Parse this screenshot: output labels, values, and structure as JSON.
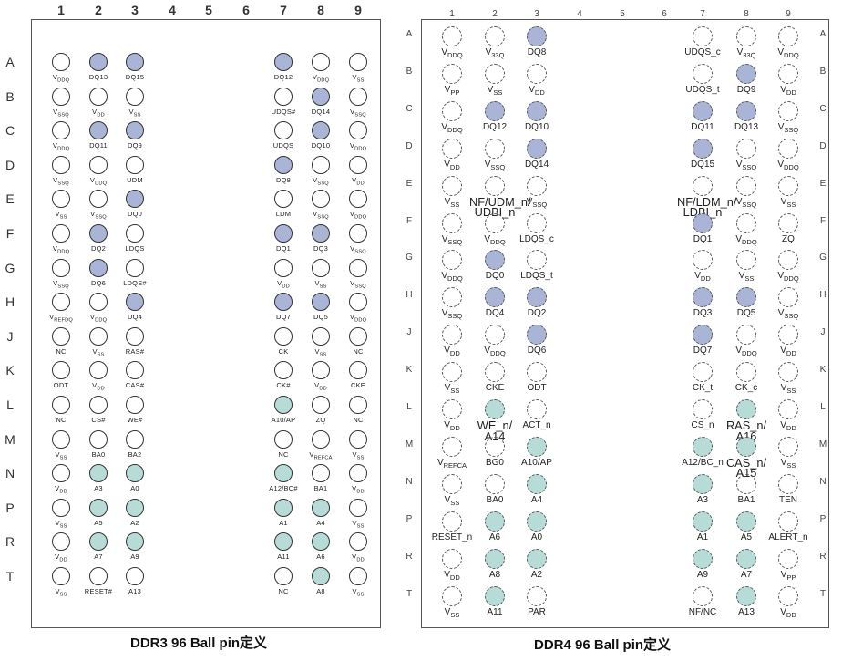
{
  "ddr3": {
    "title": "DDR3 96 Ball pin定义",
    "columns": [
      "1",
      "2",
      "3",
      "4",
      "5",
      "6",
      "7",
      "8",
      "9"
    ],
    "rows": [
      "A",
      "B",
      "C",
      "D",
      "E",
      "F",
      "G",
      "H",
      "J",
      "K",
      "L",
      "M",
      "N",
      "P",
      "R",
      "T"
    ],
    "pins": [
      [
        "VDDQ:w",
        "DQ13:b",
        "DQ15:b",
        null,
        null,
        null,
        "DQ12:b",
        "VDDQ:w",
        "VSS:w"
      ],
      [
        "VSSQ:w",
        "VDD:w",
        "VSS:w",
        null,
        null,
        null,
        "UDQS#:w",
        "DQ14:b",
        "VSSQ:w"
      ],
      [
        "VDDQ:w",
        "DQ11:b",
        "DQ9:b",
        null,
        null,
        null,
        "UDQS:w",
        "DQ10:b",
        "VDDQ:w"
      ],
      [
        "VSSQ:w",
        "VDDQ:w",
        "UDM:w",
        null,
        null,
        null,
        "DQ8:b",
        "VSSQ:w",
        "VDD:w"
      ],
      [
        "VSS:w",
        "VSSQ:w",
        "DQ0:b",
        null,
        null,
        null,
        "LDM:w",
        "VSSQ:w",
        "VDDQ:w"
      ],
      [
        "VDDQ:w",
        "DQ2:b",
        "LDQS:w",
        null,
        null,
        null,
        "DQ1:b",
        "DQ3:b",
        "VSSQ:w"
      ],
      [
        "VSSQ:w",
        "DQ6:b",
        "LDQS#:w",
        null,
        null,
        null,
        "VDD:w",
        "VSS:w",
        "VSSQ:w"
      ],
      [
        "VREFDQ:w",
        "VDDQ:w",
        "DQ4:b",
        null,
        null,
        null,
        "DQ7:b",
        "DQ5:b",
        "VDDQ:w"
      ],
      [
        "NC:w",
        "VSS:w",
        "RAS#:w",
        null,
        null,
        null,
        "CK:w",
        "VSS:w",
        "NC:w"
      ],
      [
        "ODT:w",
        "VDD:w",
        "CAS#:w",
        null,
        null,
        null,
        "CK#:w",
        "VDD:w",
        "CKE:w"
      ],
      [
        "NC:w",
        "CS#:w",
        "WE#:w",
        null,
        null,
        null,
        "A10/AP:g",
        "ZQ:w",
        "NC:w"
      ],
      [
        "VSS:w",
        "BA0:w",
        "BA2:w",
        null,
        null,
        null,
        "NC:w",
        "VREFCA:w",
        "VSS:w"
      ],
      [
        "VDD:w",
        "A3:g",
        "A0:g",
        null,
        null,
        null,
        "A12/BC#:g",
        "BA1:w",
        "VDD:w"
      ],
      [
        "VSS:w",
        "A5:g",
        "A2:g",
        null,
        null,
        null,
        "A1:g",
        "A4:g",
        "VSS:w"
      ],
      [
        "VDD:w",
        "A7:g",
        "A9:g",
        null,
        null,
        null,
        "A11:g",
        "A6:g",
        "VDD:w"
      ],
      [
        "VSS:w",
        "RESET#:w",
        "A13:w",
        null,
        null,
        null,
        "NC:w",
        "A8:g",
        "VSS:w"
      ]
    ]
  },
  "ddr4": {
    "title": "DDR4 96 Ball pin定义",
    "columns": [
      "1",
      "2",
      "3",
      "4",
      "5",
      "6",
      "7",
      "8",
      "9"
    ],
    "rows": [
      "A",
      "B",
      "C",
      "D",
      "E",
      "F",
      "G",
      "H",
      "J",
      "K",
      "L",
      "M",
      "N",
      "P",
      "R",
      "T"
    ],
    "pins": [
      [
        "VDDQ:w",
        "V33Q:w",
        "DQ8:b",
        null,
        null,
        null,
        "UDQS_c:w",
        "V33Q:w",
        "VDDQ:w"
      ],
      [
        "VPP:w",
        "VSS:w",
        "VDD:w",
        null,
        null,
        null,
        "UDQS_t:w",
        "DQ9:b",
        "VDD:w"
      ],
      [
        "VDDQ:w",
        "DQ12:b",
        "DQ10:b",
        null,
        null,
        null,
        "DQ11:b",
        "DQ13:b",
        "VSSQ:w"
      ],
      [
        "VDD:w",
        "VSSQ:w",
        "DQ14:b",
        null,
        null,
        null,
        "DQ15:b",
        "VSSQ:w",
        "VDDQ:w"
      ],
      [
        "VSS:w",
        "NF/UDM_n/ UDBI_n:w",
        "VSSQ:w",
        null,
        null,
        null,
        "NF/LDM_n/ LDBI_n:w",
        "VSSQ:w",
        "VSS:w"
      ],
      [
        "VSSQ:w",
        "VDDQ:w",
        "LDQS_c:w",
        null,
        null,
        null,
        "DQ1:b",
        "VDDQ:w",
        "ZQ:w"
      ],
      [
        "VDDQ:w",
        "DQ0:b",
        "LDQS_t:w",
        null,
        null,
        null,
        "VDD:w",
        "VSS:w",
        "VDDQ:w"
      ],
      [
        "VSSQ:w",
        "DQ4:b",
        "DQ2:b",
        null,
        null,
        null,
        "DQ3:b",
        "DQ5:b",
        "VSSQ:w"
      ],
      [
        "VDD:w",
        "VDDQ:w",
        "DQ6:b",
        null,
        null,
        null,
        "DQ7:b",
        "VDDQ:w",
        "VDD:w"
      ],
      [
        "VSS:w",
        "CKE:w",
        "ODT:w",
        null,
        null,
        null,
        "CK_t:w",
        "CK_c:w",
        "VSS:w"
      ],
      [
        "VDD:w",
        "WE_n/ A14:g",
        "ACT_n:w",
        null,
        null,
        null,
        "CS_n:w",
        "RAS_n/ A16:g",
        "VDD:w"
      ],
      [
        "VREFCA:w",
        "BG0:w",
        "A10/AP:g",
        null,
        null,
        null,
        "A12/BC_n:g",
        "CAS_n/ A15:g",
        "VSS:w"
      ],
      [
        "VSS:w",
        "BA0:w",
        "A4:g",
        null,
        null,
        null,
        "A3:g",
        "BA1:w",
        "TEN:w"
      ],
      [
        "RESET_n:w",
        "A6:g",
        "A0:g",
        null,
        null,
        null,
        "A1:g",
        "A5:g",
        "ALERT_n:w"
      ],
      [
        "VDD:w",
        "A8:g",
        "A2:g",
        null,
        null,
        null,
        "A9:g",
        "A7:g",
        "VPP:w"
      ],
      [
        "VSS:w",
        "A11:g",
        "PAR:w",
        null,
        null,
        null,
        "NF/NC:w",
        "A13:g",
        "VDD:w"
      ]
    ]
  }
}
